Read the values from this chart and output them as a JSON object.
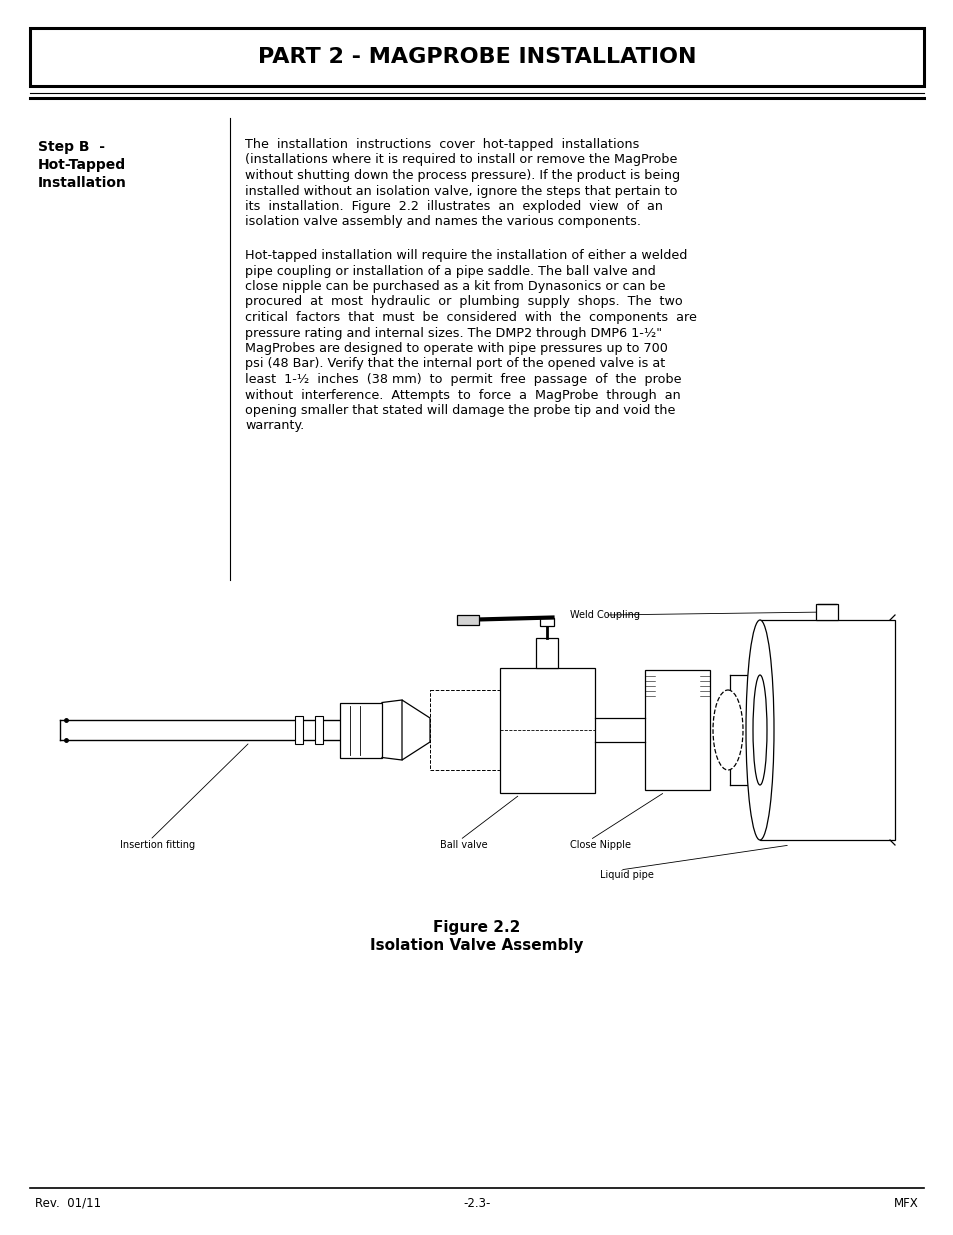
{
  "title": "PART 2 - MAGPROBE INSTALLATION",
  "footer_left": "Rev.  01/11",
  "footer_center": "-2.3-",
  "footer_right": "MFX",
  "label_weld_coupling": "Weld Coupling",
  "label_insertion_fitting": "Insertion fitting",
  "label_ball_valve": "Ball valve",
  "label_close_nipple": "Close Nipple",
  "label_liquid_pipe": "Liquid pipe",
  "figure_caption_1": "Figure 2.2",
  "figure_caption_2": "Isolation Valve Assembly",
  "bg_color": "#ffffff",
  "para1_lines": [
    "The  installation  instructions  cover  hot-tapped  installations",
    "(installations where it is required to install or remove the MagProbe",
    "without shutting down the process pressure). If the product is being",
    "installed without an isolation valve, ignore the steps that pertain to",
    "its  installation.  Figure  2.2  illustrates  an  exploded  view  of  an",
    "isolation valve assembly and names the various components."
  ],
  "para2_lines": [
    "Hot-tapped installation will require the installation of either a welded",
    "pipe coupling or installation of a pipe saddle. The ball valve and",
    "close nipple can be purchased as a kit from Dynasonics or can be",
    "procured  at  most  hydraulic  or  plumbing  supply  shops.  The  two",
    "critical  factors  that  must  be  considered  with  the  components  are",
    "pressure rating and internal sizes. The DMP2 through DMP6 1-½\"",
    "MagProbes are designed to operate with pipe pressures up to 700",
    "psi (48 Bar). Verify that the internal port of the opened valve is at",
    "least  1-½  inches  (38 mm)  to  permit  free  passage  of  the  probe",
    "without  interference.  Attempts  to  force  a  MagProbe  through  an",
    "opening smaller that stated will damage the probe tip and void the",
    "warranty."
  ]
}
